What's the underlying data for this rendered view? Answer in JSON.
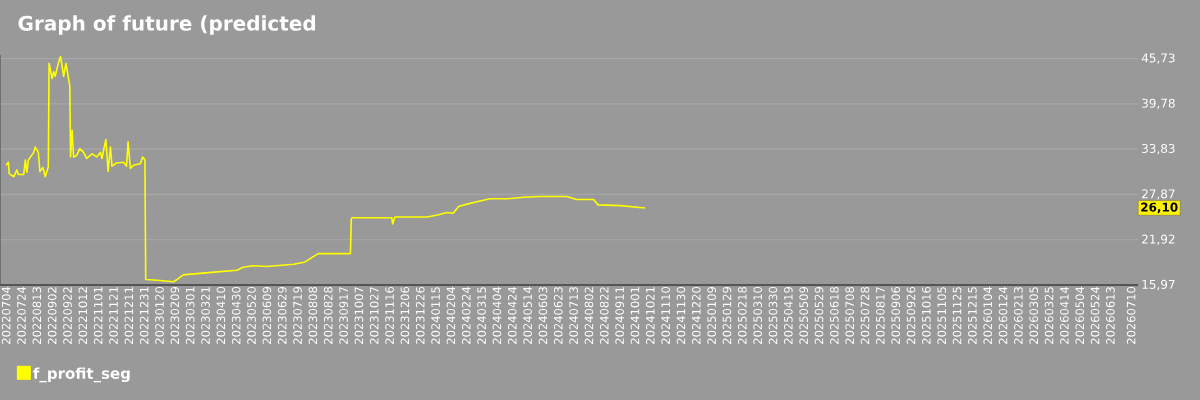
{
  "chart_data": {
    "type": "line",
    "title": "Graph of future (predicted",
    "x": [
      "2022-07-04",
      "2022-07-07",
      "2022-07-08",
      "2022-07-14",
      "2022-07-18",
      "2022-07-20",
      "2022-07-27",
      "2022-07-29",
      "2022-07-31",
      "2022-08-02",
      "2022-08-09",
      "2022-08-11",
      "2022-08-15",
      "2022-08-17",
      "2022-08-21",
      "2022-08-24",
      "2022-08-28",
      "2022-08-29",
      "2022-09-02",
      "2022-09-04",
      "2022-09-06",
      "2022-09-10",
      "2022-09-13",
      "2022-09-17",
      "2022-09-20",
      "2022-09-25",
      "2022-09-26",
      "2022-09-28",
      "2022-09-30",
      "2022-10-04",
      "2022-10-08",
      "2022-10-13",
      "2022-10-17",
      "2022-10-24",
      "2022-10-30",
      "2022-11-04",
      "2022-11-06",
      "2022-11-11",
      "2022-11-14",
      "2022-11-17",
      "2022-11-19",
      "2022-11-25",
      "2022-12-04",
      "2022-12-08",
      "2022-12-10",
      "2022-12-13",
      "2022-12-17",
      "2022-12-26",
      "2022-12-29",
      "2023-01-01",
      "2023-01-02",
      "2023-01-17",
      "2023-02-07",
      "2023-02-12",
      "2023-02-20",
      "2023-03-14",
      "2023-04-05",
      "2023-05-01",
      "2023-05-09",
      "2023-05-22",
      "2023-06-09",
      "2023-07-14",
      "2023-07-29",
      "2023-08-07",
      "2023-08-15",
      "2023-09-26",
      "2023-09-27",
      "2023-09-28",
      "2023-10-22",
      "2023-11-19",
      "2023-11-20",
      "2023-11-23",
      "2024-01-04",
      "2024-01-19",
      "2024-01-30",
      "2024-02-07",
      "2024-02-14",
      "2024-02-25",
      "2024-03-13",
      "2024-03-26",
      "2024-04-17",
      "2024-05-09",
      "2024-05-30",
      "2024-07-04",
      "2024-07-17",
      "2024-08-08",
      "2024-08-14",
      "2024-09-12",
      "2024-10-14"
    ],
    "series": [
      {
        "name": "f_profit_seg",
        "color": "#ffff00",
        "values": [
          31.7,
          32.1,
          30.6,
          30.2,
          31.1,
          30.5,
          30.5,
          32.4,
          30.8,
          32.4,
          33.4,
          34.1,
          33.4,
          30.9,
          31.4,
          30.2,
          31.5,
          45.1,
          43.1,
          44.0,
          43.4,
          45.1,
          46.0,
          43.4,
          45.1,
          42.1,
          32.8,
          36.3,
          32.8,
          33.0,
          33.9,
          33.4,
          32.6,
          33.2,
          32.8,
          33.4,
          32.6,
          35.1,
          30.9,
          34.1,
          31.6,
          32.0,
          32.1,
          31.6,
          34.8,
          31.3,
          31.7,
          31.9,
          32.8,
          32.4,
          16.7,
          16.6,
          16.4,
          16.7,
          17.3,
          17.5,
          17.7,
          17.9,
          18.3,
          18.5,
          18.4,
          18.7,
          19.0,
          19.6,
          20.1,
          20.1,
          24.6,
          24.8,
          24.8,
          24.8,
          24.0,
          24.9,
          24.9,
          25.2,
          25.5,
          25.4,
          26.3,
          26.6,
          27.0,
          27.3,
          27.3,
          27.5,
          27.6,
          27.6,
          27.2,
          27.2,
          26.5,
          26.4,
          26.1
        ]
      }
    ],
    "xlim": [
      "2022-06-26",
      "2026-07-19"
    ],
    "xticks": [
      {
        "value": "2022-07-04",
        "label": "20220704"
      },
      {
        "value": "2022-07-24",
        "label": "20220724"
      },
      {
        "value": "2022-08-13",
        "label": "20220813"
      },
      {
        "value": "2022-09-02",
        "label": "20220902"
      },
      {
        "value": "2022-09-22",
        "label": "20220922"
      },
      {
        "value": "2022-10-12",
        "label": "20221012"
      },
      {
        "value": "2022-11-01",
        "label": "20221101"
      },
      {
        "value": "2022-11-21",
        "label": "20221121"
      },
      {
        "value": "2022-12-11",
        "label": "20221211"
      },
      {
        "value": "2022-12-31",
        "label": "20221231"
      },
      {
        "value": "2023-01-20",
        "label": "20230120"
      },
      {
        "value": "2023-02-09",
        "label": "20230209"
      },
      {
        "value": "2023-03-01",
        "label": "20230301"
      },
      {
        "value": "2023-03-21",
        "label": "20230321"
      },
      {
        "value": "2023-04-10",
        "label": "20230410"
      },
      {
        "value": "2023-04-30",
        "label": "20230430"
      },
      {
        "value": "2023-05-20",
        "label": "20230520"
      },
      {
        "value": "2023-06-09",
        "label": "20230609"
      },
      {
        "value": "2023-06-29",
        "label": "20230629"
      },
      {
        "value": "2023-07-19",
        "label": "20230719"
      },
      {
        "value": "2023-08-08",
        "label": "20230808"
      },
      {
        "value": "2023-08-28",
        "label": "20230828"
      },
      {
        "value": "2023-09-17",
        "label": "20230917"
      },
      {
        "value": "2023-10-07",
        "label": "20231007"
      },
      {
        "value": "2023-10-27",
        "label": "20231027"
      },
      {
        "value": "2023-11-16",
        "label": "20231116"
      },
      {
        "value": "2023-12-06",
        "label": "20231206"
      },
      {
        "value": "2023-12-26",
        "label": "20231226"
      },
      {
        "value": "2024-01-15",
        "label": "20240115"
      },
      {
        "value": "2024-02-04",
        "label": "20240204"
      },
      {
        "value": "2024-02-24",
        "label": "20240224"
      },
      {
        "value": "2024-03-15",
        "label": "20240315"
      },
      {
        "value": "2024-04-04",
        "label": "20240404"
      },
      {
        "value": "2024-04-24",
        "label": "20240424"
      },
      {
        "value": "2024-05-14",
        "label": "20240514"
      },
      {
        "value": "2024-06-03",
        "label": "20240603"
      },
      {
        "value": "2024-06-23",
        "label": "20240623"
      },
      {
        "value": "2024-07-13",
        "label": "20240713"
      },
      {
        "value": "2024-08-02",
        "label": "20240802"
      },
      {
        "value": "2024-08-22",
        "label": "20240822"
      },
      {
        "value": "2024-09-11",
        "label": "20240911"
      },
      {
        "value": "2024-10-01",
        "label": "20241001"
      },
      {
        "value": "2024-10-21",
        "label": "20241021"
      },
      {
        "value": "2024-11-10",
        "label": "20241110"
      },
      {
        "value": "2024-11-30",
        "label": "20241130"
      },
      {
        "value": "2024-12-20",
        "label": "20241220"
      },
      {
        "value": "2025-01-09",
        "label": "20250109"
      },
      {
        "value": "2025-01-29",
        "label": "20250129"
      },
      {
        "value": "2025-02-18",
        "label": "20250218"
      },
      {
        "value": "2025-03-10",
        "label": "20250310"
      },
      {
        "value": "2025-03-30",
        "label": "20250330"
      },
      {
        "value": "2025-04-19",
        "label": "20250419"
      },
      {
        "value": "2025-05-09",
        "label": "20250509"
      },
      {
        "value": "2025-05-29",
        "label": "20250529"
      },
      {
        "value": "2025-06-18",
        "label": "20250618"
      },
      {
        "value": "2025-07-08",
        "label": "20250708"
      },
      {
        "value": "2025-07-28",
        "label": "20250728"
      },
      {
        "value": "2025-08-17",
        "label": "20250817"
      },
      {
        "value": "2025-09-06",
        "label": "20250906"
      },
      {
        "value": "2025-09-26",
        "label": "20250926"
      },
      {
        "value": "2025-10-16",
        "label": "20251016"
      },
      {
        "value": "2025-11-05",
        "label": "20251105"
      },
      {
        "value": "2025-11-25",
        "label": "20251125"
      },
      {
        "value": "2025-12-15",
        "label": "20251215"
      },
      {
        "value": "2026-01-04",
        "label": "20260104"
      },
      {
        "value": "2026-01-24",
        "label": "20260124"
      },
      {
        "value": "2026-02-13",
        "label": "20260213"
      },
      {
        "value": "2026-03-05",
        "label": "20260305"
      },
      {
        "value": "2026-03-25",
        "label": "20260325"
      },
      {
        "value": "2026-04-14",
        "label": "20260414"
      },
      {
        "value": "2026-05-04",
        "label": "20260504"
      },
      {
        "value": "2026-05-24",
        "label": "20260524"
      },
      {
        "value": "2026-06-13",
        "label": "20260613"
      },
      {
        "value": "2026-07-10",
        "label": "20260710"
      }
    ],
    "ylim": [
      15.97,
      46.2
    ],
    "yticks": [
      {
        "value": 15.97,
        "label": "15,97"
      },
      {
        "value": 21.92,
        "label": "21,92"
      },
      {
        "value": 27.87,
        "label": "27,87"
      },
      {
        "value": 33.83,
        "label": "33,83"
      },
      {
        "value": 39.78,
        "label": "39,78"
      },
      {
        "value": 45.73,
        "label": "45,73"
      }
    ],
    "annotations": [
      {
        "text": "26,10",
        "y": 26.1
      }
    ],
    "grid": "y",
    "legend": "bottom",
    "marker": "none",
    "line_style": "solid"
  }
}
